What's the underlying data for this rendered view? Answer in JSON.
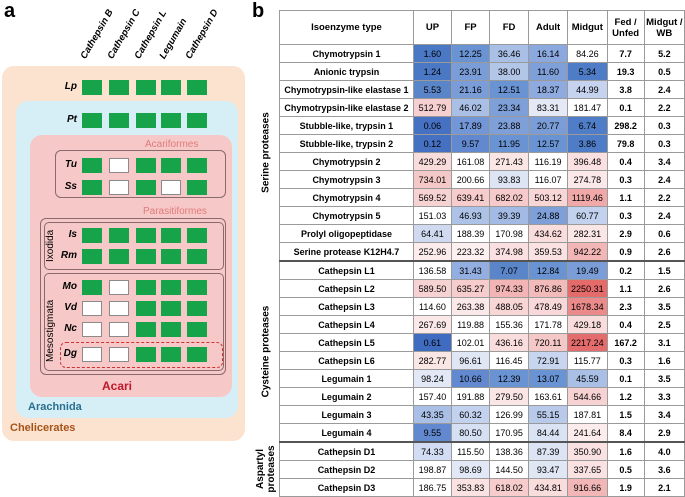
{
  "panel_a": {
    "letter": "a",
    "column_headers": [
      "Cathepsin B",
      "Cathepsin C",
      "Cathepsin L",
      "Legumain",
      "Cathepsin D"
    ],
    "groups": {
      "chelicerates": "Chelicerates",
      "arachnida": "Arachnida",
      "acari": "Acari",
      "acariformes": "Acariformes",
      "parasitiformes": "Parasitiformes",
      "ixodida": "Ixodida",
      "mesostigmata": "Mesostigmata"
    },
    "species": [
      {
        "label": "Lp",
        "presence": [
          1,
          1,
          1,
          1,
          1
        ]
      },
      {
        "label": "Pt",
        "presence": [
          1,
          1,
          1,
          1,
          1
        ]
      },
      {
        "label": "Tu",
        "presence": [
          1,
          0,
          1,
          1,
          1
        ]
      },
      {
        "label": "Ss",
        "presence": [
          1,
          0,
          1,
          0,
          1
        ]
      },
      {
        "label": "Is",
        "presence": [
          1,
          1,
          1,
          1,
          1
        ]
      },
      {
        "label": "Rm",
        "presence": [
          1,
          1,
          1,
          1,
          1
        ]
      },
      {
        "label": "Mo",
        "presence": [
          1,
          0,
          1,
          1,
          1
        ]
      },
      {
        "label": "Vd",
        "presence": [
          0,
          0,
          1,
          1,
          1
        ]
      },
      {
        "label": "Nc",
        "presence": [
          0,
          0,
          1,
          1,
          1
        ]
      },
      {
        "label": "Dg",
        "presence": [
          0,
          0,
          1,
          1,
          1
        ]
      }
    ],
    "colors": {
      "present": "#16a34a",
      "chelicerates_bg": "#fbe3cf",
      "arachnida_bg": "#d6eef6",
      "acari_bg": "#f7c8c8",
      "acari_text": "#c0182a",
      "arachnida_text": "#2a6f8f",
      "chelicerates_text": "#a6531a"
    }
  },
  "panel_b": {
    "letter": "b",
    "headers": [
      "Isoenzyme type",
      "UP",
      "FP",
      "FD",
      "Adult",
      "Midgut",
      "Fed / Unfed",
      "Midgut / WB"
    ],
    "sections": [
      {
        "label": "Serine proteases",
        "rows": [
          {
            "name": "Chymotrypsin 1",
            "values": [
              "1.60",
              "12.25",
              "36.46",
              "16.14",
              "84.26"
            ],
            "fed_unfed": "7.7",
            "midgut_wb": "5.2",
            "colors": [
              "#4a78c4",
              "#6a93d4",
              "#a9bfe6",
              "#8ba9de",
              "#ffffff"
            ]
          },
          {
            "name": "Anionic trypsin",
            "values": [
              "1.24",
              "23.91",
              "38.00",
              "11.60",
              "5.34"
            ],
            "fed_unfed": "19.3",
            "midgut_wb": "0.5",
            "colors": [
              "#4a78c4",
              "#7a9dd8",
              "#b2c6e8",
              "#7e9fd8",
              "#4f7cc6"
            ]
          },
          {
            "name": "Chymotrypsin-like elastase 1",
            "values": [
              "5.53",
              "21.16",
              "12.51",
              "18.37",
              "44.99"
            ],
            "fed_unfed": "3.8",
            "midgut_wb": "2.4",
            "colors": [
              "#5a85c9",
              "#7a9dd8",
              "#6a93d4",
              "#8eaadf",
              "#c5d3ee"
            ]
          },
          {
            "name": "Chymotrypsin-like elastase 2",
            "values": [
              "512.79",
              "46.02",
              "23.34",
              "83.31",
              "181.47"
            ],
            "fed_unfed": "0.1",
            "midgut_wb": "2.2",
            "colors": [
              "#f6d0d0",
              "#a9bfe6",
              "#7e9fd8",
              "#e4e9f5",
              "#ffffff"
            ]
          },
          {
            "name": "Stubble-like, trypsin 1",
            "values": [
              "0.06",
              "17.89",
              "23.88",
              "20.77",
              "6.74"
            ],
            "fed_unfed": "298.2",
            "midgut_wb": "0.3",
            "colors": [
              "#4670c2",
              "#7396d6",
              "#7e9fd8",
              "#7a9dd8",
              "#507dc7"
            ]
          },
          {
            "name": "Stubble-like, trypsin 2",
            "values": [
              "0.12",
              "9.57",
              "11.95",
              "12.57",
              "3.86"
            ],
            "fed_unfed": "79.8",
            "midgut_wb": "0.3",
            "colors": [
              "#4670c2",
              "#6289cf",
              "#6a93d4",
              "#6a93d4",
              "#4f7cc6"
            ]
          },
          {
            "name": "Chymotrypsin 2",
            "values": [
              "429.29",
              "161.08",
              "271.43",
              "116.19",
              "396.48"
            ],
            "fed_unfed": "0.4",
            "midgut_wb": "3.4",
            "colors": [
              "#f9dcdc",
              "#ffffff",
              "#fbe6e6",
              "#ffffff",
              "#fae0e0"
            ]
          },
          {
            "name": "Chymotrypsin 3",
            "values": [
              "734.01",
              "200.66",
              "93.83",
              "116.07",
              "274.78"
            ],
            "fed_unfed": "0.3",
            "midgut_wb": "2.4",
            "colors": [
              "#f5c8c8",
              "#ffffff",
              "#dde4f3",
              "#ffffff",
              "#fbe8e8"
            ]
          },
          {
            "name": "Chymotrypsin 4",
            "values": [
              "569.52",
              "639.41",
              "682.02",
              "503.12",
              "1119.46"
            ],
            "fed_unfed": "1.1",
            "midgut_wb": "2.2",
            "colors": [
              "#f7d2d2",
              "#f6cccc",
              "#f6caca",
              "#f8d6d6",
              "#f0a8a8"
            ]
          },
          {
            "name": "Chymotrypsin 5",
            "values": [
              "151.03",
              "46.93",
              "39.39",
              "24.88",
              "60.77"
            ],
            "fed_unfed": "0.3",
            "midgut_wb": "2.4",
            "colors": [
              "#ffffff",
              "#adc2e7",
              "#a2bae4",
              "#7e9fd8",
              "#c2d1ee"
            ]
          },
          {
            "name": "Prolyl oligopeptidase",
            "values": [
              "64.41",
              "188.39",
              "170.98",
              "434.62",
              "282.31"
            ],
            "fed_unfed": "2.9",
            "midgut_wb": "0.6",
            "colors": [
              "#cfdaf1",
              "#ffffff",
              "#ffffff",
              "#f9dcdc",
              "#fbe6e6"
            ]
          },
          {
            "name": "Serine protease K12H4.7",
            "values": [
              "252.96",
              "223.32",
              "374.98",
              "359.53",
              "942.22"
            ],
            "fed_unfed": "0.9",
            "midgut_wb": "2.6",
            "colors": [
              "#fcecec",
              "#fdf0f0",
              "#fae0e0",
              "#fae2e2",
              "#f2b6b6"
            ]
          }
        ]
      },
      {
        "label": "Cysteine proteases",
        "rows": [
          {
            "name": "Cathepsin L1",
            "values": [
              "136.58",
              "31.43",
              "7.07",
              "12.84",
              "19.49"
            ],
            "fed_unfed": "0.2",
            "midgut_wb": "1.5",
            "colors": [
              "#ffffff",
              "#93aee1",
              "#5a85c9",
              "#6a93d4",
              "#7a9dd8"
            ]
          },
          {
            "name": "Cathepsin L2",
            "values": [
              "589.50",
              "635.27",
              "974.33",
              "876.86",
              "2250.31"
            ],
            "fed_unfed": "1.1",
            "midgut_wb": "2.6",
            "colors": [
              "#f7d2d2",
              "#f6cccc",
              "#f2b4b4",
              "#f3baba",
              "#e56a6a"
            ]
          },
          {
            "name": "Cathepsin L3",
            "values": [
              "114.60",
              "263.38",
              "488.05",
              "478.49",
              "1678.34"
            ],
            "fed_unfed": "2.3",
            "midgut_wb": "3.5",
            "colors": [
              "#ffffff",
              "#fbe8e8",
              "#f8d6d6",
              "#f8d8d8",
              "#eb8a8a"
            ]
          },
          {
            "name": "Cathepsin L4",
            "values": [
              "267.69",
              "119.88",
              "155.36",
              "171.78",
              "429.18"
            ],
            "fed_unfed": "0.4",
            "midgut_wb": "2.5",
            "colors": [
              "#fbe8e8",
              "#ffffff",
              "#ffffff",
              "#ffffff",
              "#f9dcdc"
            ]
          },
          {
            "name": "Cathepsin L5",
            "values": [
              "0.61",
              "102.01",
              "436.16",
              "720.11",
              "2217.24"
            ],
            "fed_unfed": "167.2",
            "midgut_wb": "3.1",
            "colors": [
              "#3f6cc0",
              "#ffffff",
              "#f9dcdc",
              "#f5c8c8",
              "#e56c6c"
            ]
          },
          {
            "name": "Cathepsin L6",
            "values": [
              "282.77",
              "96.61",
              "116.45",
              "72.91",
              "115.77"
            ],
            "fed_unfed": "0.3",
            "midgut_wb": "1.6",
            "colors": [
              "#fbe6e6",
              "#e0e7f4",
              "#ffffff",
              "#c8d5ef",
              "#ffffff"
            ]
          },
          {
            "name": "Legumain 1",
            "values": [
              "98.24",
              "10.66",
              "12.39",
              "13.07",
              "45.59"
            ],
            "fed_unfed": "0.1",
            "midgut_wb": "3.5",
            "colors": [
              "#e2e8f5",
              "#6289cf",
              "#6a93d4",
              "#6a93d4",
              "#a9bfe6"
            ]
          },
          {
            "name": "Legumain 2",
            "values": [
              "157.40",
              "191.88",
              "279.50",
              "163.61",
              "544.66"
            ],
            "fed_unfed": "1.2",
            "midgut_wb": "3.3",
            "colors": [
              "#ffffff",
              "#ffffff",
              "#fbe6e6",
              "#ffffff",
              "#f7d2d2"
            ]
          },
          {
            "name": "Legumain 3",
            "values": [
              "43.35",
              "60.32",
              "126.99",
              "55.15",
              "187.81"
            ],
            "fed_unfed": "1.5",
            "midgut_wb": "3.4",
            "colors": [
              "#a9bfe6",
              "#c2d1ee",
              "#ffffff",
              "#b8c9ea",
              "#ffffff"
            ]
          },
          {
            "name": "Legumain 4",
            "values": [
              "9.55",
              "80.50",
              "170.95",
              "84.44",
              "241.64"
            ],
            "fed_unfed": "8.4",
            "midgut_wb": "2.9",
            "colors": [
              "#6289cf",
              "#d6e0f3",
              "#ffffff",
              "#dae3f4",
              "#fcecec"
            ]
          }
        ]
      },
      {
        "label": "Aspartyl proteases",
        "rows": [
          {
            "name": "Cathepsin D1",
            "values": [
              "74.33",
              "115.50",
              "138.36",
              "87.39",
              "350.90"
            ],
            "fed_unfed": "1.6",
            "midgut_wb": "4.0",
            "colors": [
              "#d2dcf2",
              "#ffffff",
              "#ffffff",
              "#dde4f3",
              "#fae2e2"
            ]
          },
          {
            "name": "Cathepsin D2",
            "values": [
              "198.87",
              "98.69",
              "144.50",
              "93.47",
              "337.65"
            ],
            "fed_unfed": "0.5",
            "midgut_wb": "3.6",
            "colors": [
              "#ffffff",
              "#e2e8f5",
              "#ffffff",
              "#e0e7f4",
              "#fae2e2"
            ]
          },
          {
            "name": "Cathepsin D3",
            "values": [
              "186.75",
              "353.83",
              "618.02",
              "434.81",
              "916.66"
            ],
            "fed_unfed": "1.9",
            "midgut_wb": "2.1",
            "colors": [
              "#ffffff",
              "#fae2e2",
              "#f6cccc",
              "#f9dcdc",
              "#f2b6b6"
            ]
          }
        ]
      }
    ]
  }
}
